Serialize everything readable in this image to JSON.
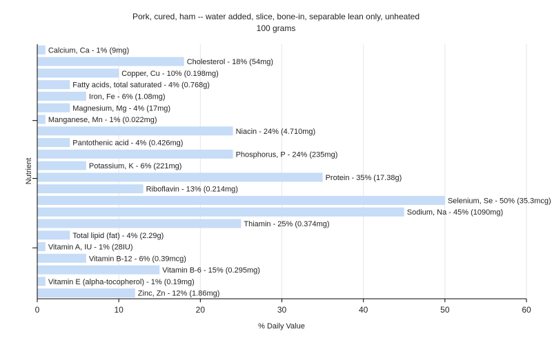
{
  "chart_data": {
    "type": "bar",
    "orientation": "horizontal",
    "title": "Pork, cured, ham -- water added, slice, bone-in, separable lean only, unheated",
    "subtitle": "100 grams",
    "xlabel": "% Daily Value",
    "ylabel": "Nutrient",
    "xlim": [
      0,
      60
    ],
    "xticks": [
      0,
      10,
      20,
      30,
      40,
      50,
      60
    ],
    "grid": true,
    "bar_color": "#c6dcf7",
    "categories": [
      "Calcium, Ca",
      "Cholesterol",
      "Copper, Cu",
      "Fatty acids, total saturated",
      "Iron, Fe",
      "Magnesium, Mg",
      "Manganese, Mn",
      "Niacin",
      "Pantothenic acid",
      "Phosphorus, P",
      "Potassium, K",
      "Protein",
      "Riboflavin",
      "Selenium, Se",
      "Sodium, Na",
      "Thiamin",
      "Total lipid (fat)",
      "Vitamin A, IU",
      "Vitamin B-12",
      "Vitamin B-6",
      "Vitamin E (alpha-tocopherol)",
      "Zinc, Zn"
    ],
    "values": [
      1,
      18,
      10,
      4,
      6,
      4,
      1,
      24,
      4,
      24,
      6,
      35,
      13,
      50,
      45,
      25,
      4,
      1,
      6,
      15,
      1,
      12
    ],
    "labels": [
      "Calcium, Ca - 1% (9mg)",
      "Cholesterol - 18% (54mg)",
      "Copper, Cu - 10% (0.198mg)",
      "Fatty acids, total saturated - 4% (0.768g)",
      "Iron, Fe - 6% (1.08mg)",
      "Magnesium, Mg - 4% (17mg)",
      "Manganese, Mn - 1% (0.022mg)",
      "Niacin - 24% (4.710mg)",
      "Pantothenic acid - 4% (0.426mg)",
      "Phosphorus, P - 24% (235mg)",
      "Potassium, K - 6% (221mg)",
      "Protein - 35% (17.38g)",
      "Riboflavin - 13% (0.214mg)",
      "Selenium, Se - 50% (35.3mcg)",
      "Sodium, Na - 45% (1090mg)",
      "Thiamin - 25% (0.374mg)",
      "Total lipid (fat) - 4% (2.29g)",
      "Vitamin A, IU - 1% (28IU)",
      "Vitamin B-12 - 6% (0.39mcg)",
      "Vitamin B-6 - 15% (0.295mg)",
      "Vitamin E (alpha-tocopherol) - 1% (0.19mg)",
      "Zinc, Zn - 12% (1.86mg)"
    ]
  }
}
